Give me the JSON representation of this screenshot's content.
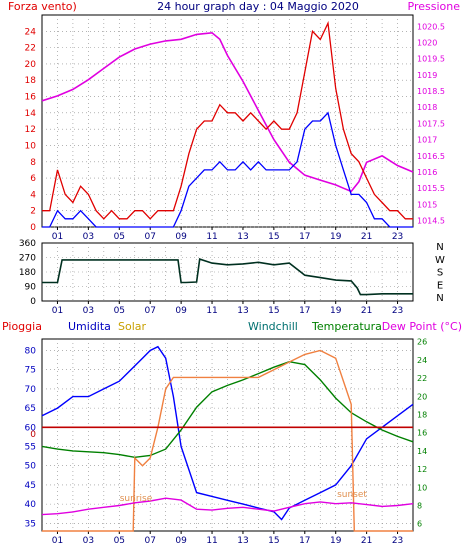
{
  "header": {
    "left_label": "Forza vento)",
    "title": "24 hour graph day : 04 Maggio 2020",
    "right_label": "Pressione"
  },
  "panel2": {
    "direction_labels": [
      "N",
      "W",
      "S",
      "E",
      "N"
    ]
  },
  "panel3": {
    "legend": [
      {
        "text": "Pioggia",
        "color": "#e00000"
      },
      {
        "text": "Umidita",
        "color": "#0000c0"
      },
      {
        "text": "Solar",
        "color": "#c8a000"
      },
      {
        "text": "Windchill",
        "color": "#007070"
      },
      {
        "text": "Temperatura",
        "color": "#008000"
      },
      {
        "text": "Dew Point (°C)",
        "color": "#e000e0"
      }
    ],
    "sunrise_label": "sunrise",
    "sunset_label": "sunset",
    "rain_zero_label": "0"
  },
  "chart_data": [
    {
      "type": "line",
      "id": "wind_pressure",
      "title": "24 hour graph day : 04 Maggio 2020",
      "x_ticks": [
        "01",
        "03",
        "05",
        "07",
        "09",
        "11",
        "13",
        "15",
        "17",
        "19",
        "21",
        "23"
      ],
      "xlim": [
        0,
        24
      ],
      "y_left": {
        "label": "Forza vento)",
        "ticks": [
          0,
          2,
          4,
          6,
          8,
          10,
          12,
          14,
          16,
          18,
          20,
          22,
          24
        ],
        "lim": [
          0,
          26
        ],
        "color": "#e00000"
      },
      "y_right": {
        "label": "Pressione",
        "ticks": [
          1014.5,
          1015,
          1015.5,
          1016,
          1016.5,
          1017,
          1017.5,
          1018,
          1018.5,
          1019,
          1019.5,
          1020,
          1020.5
        ],
        "lim": [
          1014.3,
          1020.85
        ],
        "color": "#e000e0"
      },
      "grid": true,
      "series": [
        {
          "name": "Pressione",
          "color": "#e000e0",
          "axis": "right",
          "x": [
            0,
            1,
            2,
            3,
            4,
            5,
            6,
            7,
            8,
            9,
            10,
            11,
            11.5,
            12,
            13,
            14,
            15,
            16,
            17,
            18,
            19,
            19.5,
            20,
            20.5,
            21,
            22,
            23,
            24
          ],
          "y": [
            1018.2,
            1018.35,
            1018.55,
            1018.85,
            1019.2,
            1019.55,
            1019.8,
            1019.95,
            1020.05,
            1020.1,
            1020.25,
            1020.3,
            1020.1,
            1019.6,
            1018.8,
            1017.9,
            1017.0,
            1016.3,
            1015.9,
            1015.75,
            1015.6,
            1015.5,
            1015.4,
            1015.7,
            1016.3,
            1016.5,
            1016.2,
            1016.0
          ]
        },
        {
          "name": "Raffiche",
          "color": "#e00000",
          "axis": "left",
          "x": [
            0,
            0.5,
            1,
            1.5,
            2,
            2.5,
            3,
            3.5,
            4,
            4.5,
            5,
            5.5,
            6,
            6.5,
            7,
            7.5,
            8,
            8.5,
            9,
            9.5,
            10,
            10.5,
            11,
            11.5,
            12,
            12.5,
            13,
            13.5,
            14,
            14.5,
            15,
            15.5,
            16,
            16.5,
            17,
            17.5,
            18,
            18.5,
            19,
            19.5,
            20,
            20.5,
            21,
            21.5,
            22,
            22.5,
            23,
            23.5,
            24
          ],
          "y": [
            2,
            2,
            7,
            4,
            3,
            5,
            4,
            2,
            1,
            2,
            1,
            1,
            2,
            2,
            1,
            2,
            2,
            2,
            5,
            9,
            12,
            13,
            13,
            15,
            14,
            14,
            13,
            14,
            13,
            12,
            13,
            12,
            12,
            14,
            19,
            24,
            23,
            25,
            17,
            12,
            9,
            8,
            6,
            4,
            3,
            2,
            2,
            1,
            1
          ]
        },
        {
          "name": "Vento medio",
          "color": "#0000ff",
          "axis": "left",
          "x": [
            0,
            0.5,
            1,
            1.5,
            2,
            2.5,
            3,
            3.5,
            4,
            4.5,
            5,
            5.5,
            6,
            6.5,
            7,
            7.5,
            8,
            8.5,
            9,
            9.5,
            10,
            10.5,
            11,
            11.5,
            12,
            12.5,
            13,
            13.5,
            14,
            14.5,
            15,
            15.5,
            16,
            16.5,
            17,
            17.5,
            18,
            18.5,
            19,
            19.5,
            20,
            20.5,
            21,
            21.5,
            22,
            22.5,
            23,
            23.5,
            24
          ],
          "y": [
            0,
            0,
            2,
            1,
            1,
            2,
            1,
            0,
            0,
            0,
            0,
            0,
            0,
            0,
            0,
            0,
            0,
            0,
            2,
            5,
            6,
            7,
            7,
            8,
            7,
            7,
            8,
            7,
            8,
            7,
            7,
            7,
            7,
            8,
            12,
            13,
            13,
            14,
            10,
            7,
            4,
            4,
            3,
            1,
            1,
            0,
            0,
            0,
            0
          ]
        }
      ]
    },
    {
      "type": "line",
      "id": "wind_direction",
      "x_ticks": [
        "01",
        "03",
        "05",
        "07",
        "09",
        "11",
        "13",
        "15",
        "17",
        "19",
        "21",
        "23"
      ],
      "xlim": [
        0,
        24
      ],
      "y_ticks": [
        0,
        90,
        180,
        270,
        360
      ],
      "ylim": [
        0,
        360
      ],
      "y_right_labels": [
        "N",
        "W",
        "S",
        "E",
        "N"
      ],
      "grid": true,
      "series": [
        {
          "name": "Direzione vento",
          "color": "#003020",
          "x": [
            0,
            1,
            1.3,
            2,
            3,
            4,
            5,
            6,
            7,
            8,
            8.8,
            9,
            9.3,
            10,
            10.2,
            11,
            12,
            13,
            14,
            15,
            16,
            16.8,
            17,
            18,
            19,
            20,
            20.4,
            20.6,
            21,
            22,
            23,
            24
          ],
          "y": [
            115,
            115,
            255,
            255,
            255,
            255,
            255,
            255,
            255,
            255,
            255,
            115,
            115,
            118,
            260,
            235,
            225,
            230,
            240,
            225,
            235,
            175,
            160,
            145,
            130,
            125,
            80,
            40,
            40,
            45,
            45,
            45
          ]
        }
      ]
    },
    {
      "type": "line",
      "id": "temp_humidity",
      "x_ticks": [
        "01",
        "03",
        "05",
        "07",
        "09",
        "11",
        "13",
        "15",
        "17",
        "19",
        "21",
        "23"
      ],
      "xlim": [
        0,
        24
      ],
      "y_left": {
        "label": "Umidita",
        "ticks": [
          35,
          40,
          45,
          50,
          55,
          60,
          65,
          70,
          75,
          80
        ],
        "lim": [
          33,
          83
        ],
        "color": "#0000c0"
      },
      "y_right": {
        "label": "Temperatura",
        "ticks": [
          6,
          8,
          10,
          12,
          14,
          16,
          18,
          20,
          22,
          24,
          26
        ],
        "lim": [
          5.2,
          26.3
        ],
        "color": "#008000"
      },
      "grid": true,
      "series": [
        {
          "name": "Umidita",
          "color": "#0000ff",
          "axis": "left",
          "x": [
            0,
            1,
            2,
            3,
            4,
            5,
            6,
            6.5,
            7,
            7.5,
            8,
            8.5,
            9,
            10,
            11,
            12,
            13,
            14,
            15,
            15.5,
            16,
            17,
            18,
            19,
            20,
            21,
            22,
            23,
            24
          ],
          "y": [
            63,
            65,
            68,
            68,
            70,
            72,
            76,
            78,
            80,
            81,
            78,
            68,
            55,
            43,
            42,
            41,
            40,
            39,
            38,
            36,
            39,
            41,
            43,
            45,
            50,
            57,
            60,
            63,
            66
          ]
        },
        {
          "name": "Temperatura",
          "color": "#008000",
          "axis": "right",
          "x": [
            0,
            1,
            2,
            3,
            4,
            5,
            6,
            7,
            8,
            9,
            10,
            11,
            12,
            13,
            14,
            15,
            16,
            17,
            18,
            19,
            20,
            21,
            22,
            23,
            24
          ],
          "y": [
            14.5,
            14.2,
            14.0,
            13.9,
            13.8,
            13.6,
            13.3,
            13.5,
            14.2,
            16.3,
            18.8,
            20.5,
            21.2,
            21.8,
            22.5,
            23.2,
            23.8,
            23.5,
            21.8,
            19.8,
            18.2,
            17.2,
            16.3,
            15.6,
            15.0
          ]
        },
        {
          "name": "Solar",
          "color": "#f08040",
          "axis": "left",
          "x": [
            0,
            5.9,
            6,
            6.5,
            7,
            7.5,
            8,
            8.5,
            9,
            10,
            11,
            12,
            13,
            14,
            15,
            16,
            17,
            18,
            19,
            20,
            20.2,
            20.3,
            24
          ],
          "y": [
            33,
            33,
            52,
            50,
            52,
            60,
            70,
            73,
            73,
            73,
            73,
            73,
            73,
            73,
            75,
            77,
            79,
            80,
            78,
            66,
            33,
            33,
            33
          ]
        },
        {
          "name": "Dew Point (°C)",
          "color": "#e000e0",
          "axis": "right",
          "x": [
            0,
            1,
            2,
            3,
            4,
            5,
            6,
            7,
            8,
            9,
            10,
            11,
            12,
            13,
            14,
            15,
            16,
            17,
            18,
            19,
            20,
            21,
            22,
            23,
            24
          ],
          "y": [
            7.0,
            7.1,
            7.3,
            7.6,
            7.8,
            8.0,
            8.3,
            8.5,
            8.8,
            8.6,
            7.6,
            7.5,
            7.7,
            7.8,
            7.6,
            7.4,
            7.8,
            8.2,
            8.4,
            8.2,
            8.3,
            8.1,
            7.9,
            8.0,
            8.2
          ]
        },
        {
          "name": "Pioggia",
          "color": "#c00000",
          "axis": "left",
          "x": [
            0,
            24
          ],
          "y": [
            60,
            60
          ]
        }
      ]
    }
  ]
}
